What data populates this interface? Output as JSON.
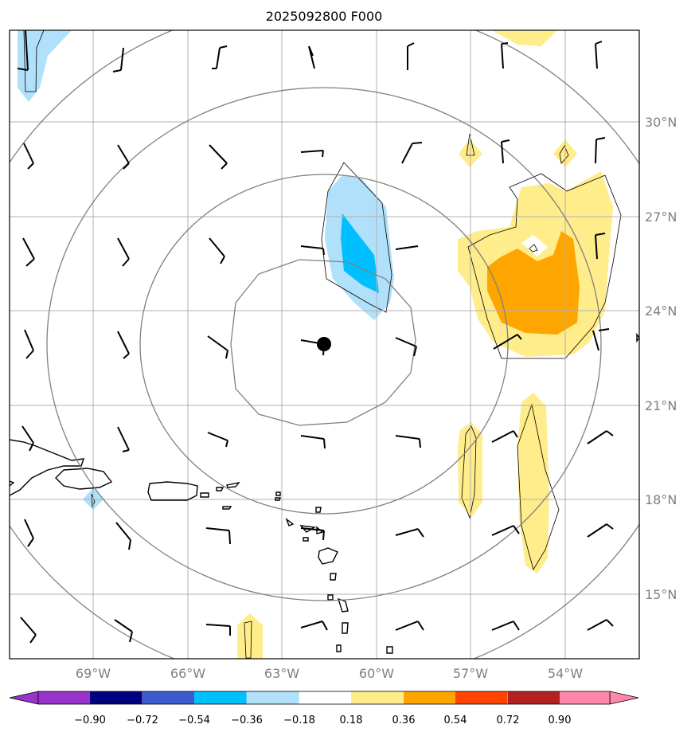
{
  "title": "2025092800 F000",
  "map": {
    "lon_labels": [
      "69°W",
      "66°W",
      "63°W",
      "60°W",
      "57°W",
      "54°W"
    ],
    "lat_labels": [
      "30°N",
      "27°N",
      "24°N",
      "21°N",
      "18°N",
      "15°N"
    ],
    "gridline_color": "#b0b0b0",
    "range_ring_color": "#808080",
    "center_marker": "filled-circle"
  },
  "colorbar": {
    "ticks": [
      "−0.90",
      "−0.72",
      "−0.54",
      "−0.36",
      "−0.18",
      "0.18",
      "0.36",
      "0.54",
      "0.72",
      "0.90"
    ],
    "colors": [
      "#9933cc",
      "#000080",
      "#3b5ccc",
      "#00bfff",
      "#b0e0fa",
      "#ffffff",
      "#ffec8b",
      "#ffa500",
      "#ff4500",
      "#b22222",
      "#ff88aa"
    ]
  }
}
